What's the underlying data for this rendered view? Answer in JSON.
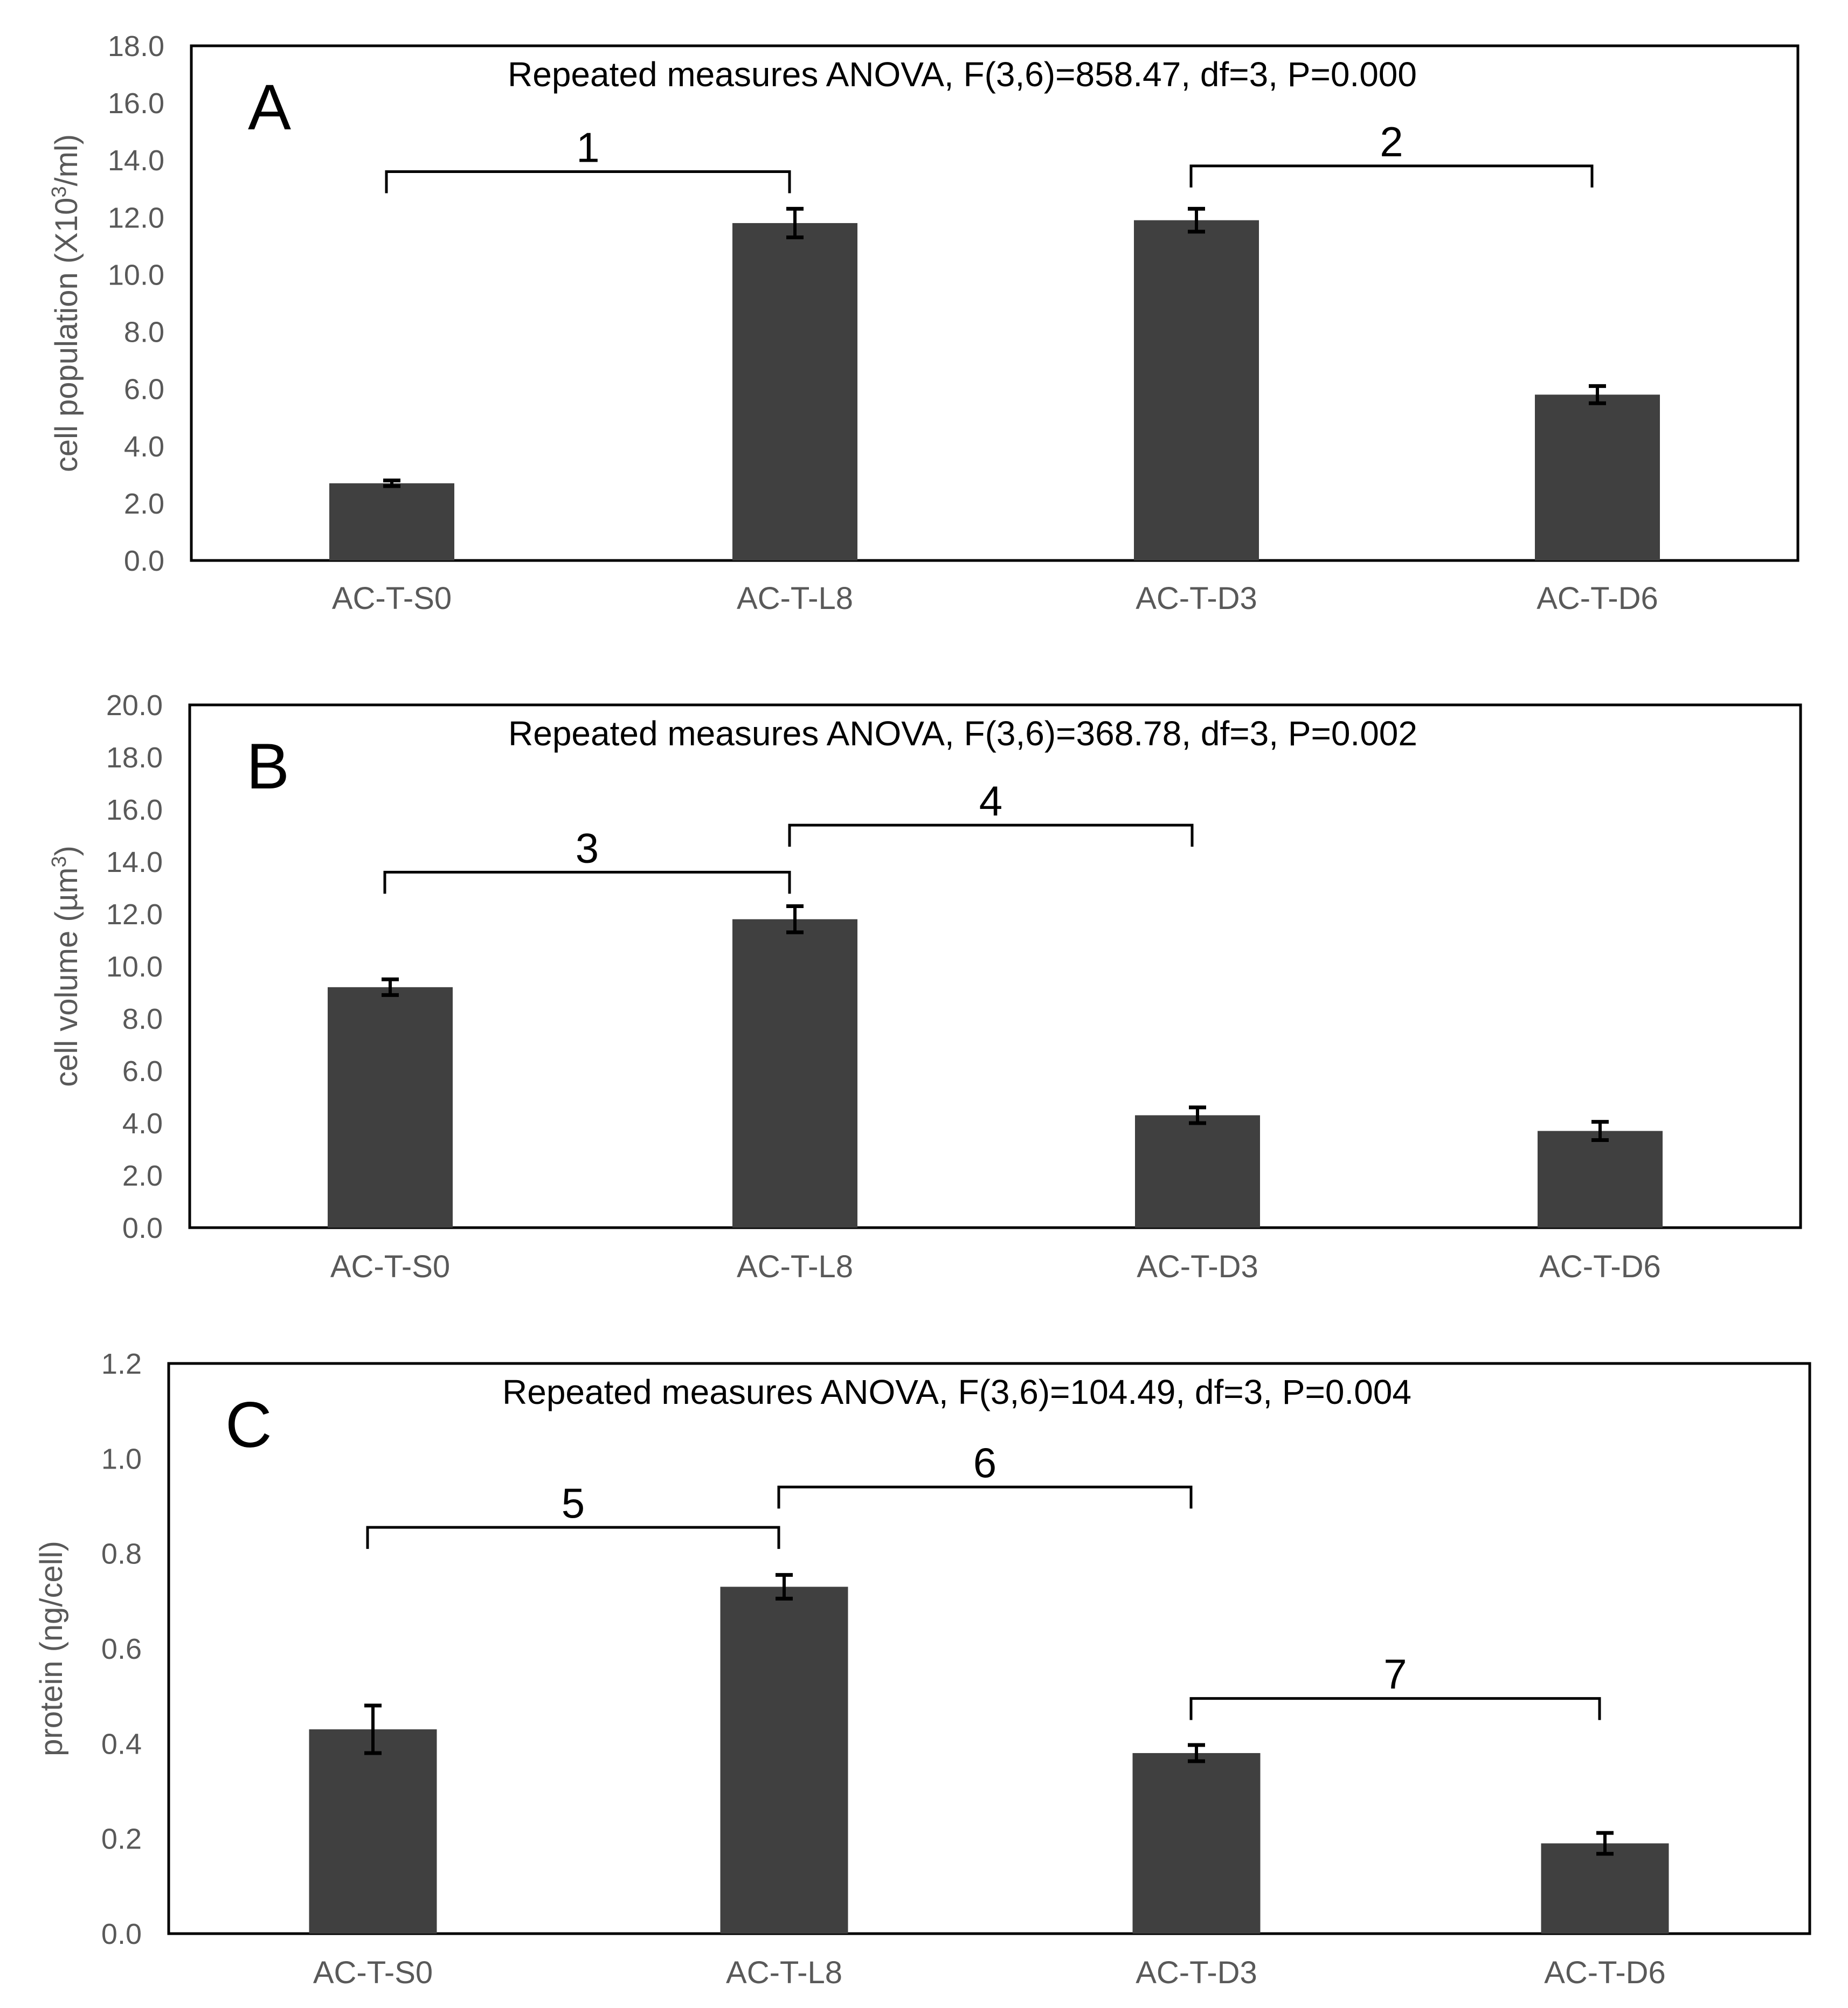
{
  "colors": {
    "bar": "#404040",
    "frame": "#000000",
    "tick_text": "#595959",
    "errorbar": "#000000"
  },
  "chart_data": [
    {
      "type": "bar",
      "panel": "A",
      "title": "Repeated measures ANOVA, F(3,6)=858.47, df=3, P=0.000",
      "ylabel_parts": [
        "cell population (X10",
        "3",
        "/ml)"
      ],
      "ylim": [
        0,
        18
      ],
      "yticks": [
        "0.0",
        "2.0",
        "4.0",
        "6.0",
        "8.0",
        "10.0",
        "12.0",
        "14.0",
        "16.0",
        "18.0"
      ],
      "categories": [
        "AC-T-S0",
        "AC-T-L8",
        "AC-T-D3",
        "AC-T-D6"
      ],
      "values": [
        2.7,
        11.8,
        11.9,
        5.8
      ],
      "errors": [
        0.1,
        0.5,
        0.4,
        0.3
      ],
      "brackets": [
        {
          "label": "1",
          "from": 0,
          "to": 1,
          "y": 13.6
        },
        {
          "label": "2",
          "from": 2,
          "to": 3,
          "y": 13.8
        }
      ]
    },
    {
      "type": "bar",
      "panel": "B",
      "title": "Repeated measures ANOVA, F(3,6)=368.78, df=3, P=0.002",
      "ylabel_parts": [
        "cell volume (µm",
        "3",
        ")"
      ],
      "ylim": [
        0,
        20
      ],
      "yticks": [
        "0.0",
        "2.0",
        "4.0",
        "6.0",
        "8.0",
        "10.0",
        "12.0",
        "14.0",
        "16.0",
        "18.0",
        "20.0"
      ],
      "categories": [
        "AC-T-S0",
        "AC-T-L8",
        "AC-T-D3",
        "AC-T-D6"
      ],
      "values": [
        9.2,
        11.8,
        4.3,
        3.7
      ],
      "errors": [
        0.3,
        0.5,
        0.3,
        0.35
      ],
      "brackets": [
        {
          "label": "3",
          "from": 0,
          "to": 1,
          "y": 13.6
        },
        {
          "label": "4",
          "from": 1,
          "to": 2,
          "y": 15.4
        }
      ]
    },
    {
      "type": "bar",
      "panel": "C",
      "title": "Repeated measures ANOVA, F(3,6)=104.49, df=3, P=0.004",
      "ylabel_parts": [
        "protein (ng/cell)"
      ],
      "ylim": [
        0,
        1.2
      ],
      "yticks": [
        "0.0",
        "0.2",
        "0.4",
        "0.6",
        "0.8",
        "1.0",
        "1.2"
      ],
      "categories": [
        "AC-T-S0",
        "AC-T-L8",
        "AC-T-D3",
        "AC-T-D6"
      ],
      "values": [
        0.43,
        0.73,
        0.38,
        0.19
      ],
      "errors": [
        0.05,
        0.025,
        0.017,
        0.022
      ],
      "brackets": [
        {
          "label": "5",
          "from": 0,
          "to": 1,
          "y": 0.855
        },
        {
          "label": "6",
          "from": 1,
          "to": 2,
          "y": 0.94
        },
        {
          "label": "7",
          "from": 2,
          "to": 3,
          "y": 0.495
        }
      ]
    }
  ]
}
